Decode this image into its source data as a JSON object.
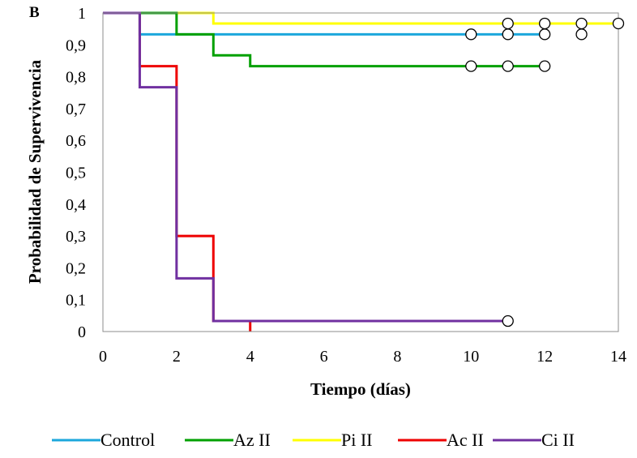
{
  "panel_label": "B",
  "chart_data": {
    "type": "line",
    "subtype": "kaplan-meier step survival curve with censored markers",
    "title": "",
    "xlabel": "Tiempo (días)",
    "ylabel": "Probabilidad de Supervivencia",
    "xlim": [
      0,
      14
    ],
    "ylim": [
      0,
      1
    ],
    "x_ticks": [
      0,
      2,
      4,
      6,
      8,
      10,
      12,
      14
    ],
    "y_ticks": [
      0,
      0.1,
      0.2,
      0.3,
      0.4,
      0.5,
      0.6,
      0.7,
      0.8,
      0.9,
      1
    ],
    "x_tick_labels": [
      "0",
      "2",
      "4",
      "6",
      "8",
      "10",
      "12",
      "14"
    ],
    "y_tick_labels": [
      "0",
      "0,1",
      "0,2",
      "0,3",
      "0,4",
      "0,5",
      "0,6",
      "0,7",
      "0,8",
      "0,9",
      "1"
    ],
    "grid": false,
    "legend_position": "bottom",
    "series": [
      {
        "name": "Control",
        "color": "#1ca7dc",
        "steps": [
          [
            0,
            1
          ],
          [
            1,
            0.933
          ],
          [
            12,
            0.933
          ]
        ],
        "censored": [
          [
            10,
            0.933
          ],
          [
            11,
            0.933
          ],
          [
            12,
            0.933
          ],
          [
            13,
            0.933
          ]
        ]
      },
      {
        "name": "Pi II",
        "color": "#ffff00",
        "steps": [
          [
            0,
            1
          ],
          [
            3,
            0.967
          ],
          [
            14,
            0.967
          ]
        ],
        "censored": [
          [
            11,
            0.967
          ],
          [
            12,
            0.967
          ],
          [
            13,
            0.967
          ],
          [
            14,
            0.967
          ]
        ]
      },
      {
        "name": "Az II",
        "color": "#00a000",
        "steps": [
          [
            0,
            1
          ],
          [
            2,
            0.933
          ],
          [
            3,
            0.867
          ],
          [
            4,
            0.833
          ],
          [
            12,
            0.833
          ]
        ],
        "censored": [
          [
            10,
            0.833
          ],
          [
            11,
            0.833
          ],
          [
            12,
            0.833
          ]
        ]
      },
      {
        "name": "Ac II",
        "color": "#ee0000",
        "steps": [
          [
            0,
            1
          ],
          [
            1,
            0.833
          ],
          [
            2,
            0.3
          ],
          [
            3,
            0.033
          ],
          [
            4,
            0
          ]
        ],
        "censored": []
      },
      {
        "name": "Ci II",
        "color": "#7030a0",
        "steps": [
          [
            0,
            1
          ],
          [
            1,
            0.767
          ],
          [
            2,
            0.167
          ],
          [
            3,
            0.033
          ],
          [
            11,
            0.033
          ]
        ],
        "censored": [
          [
            11,
            0.033
          ]
        ]
      }
    ],
    "legend_order": [
      "Control",
      "Az II",
      "Pi II",
      "Ac II",
      "Ci II"
    ]
  }
}
